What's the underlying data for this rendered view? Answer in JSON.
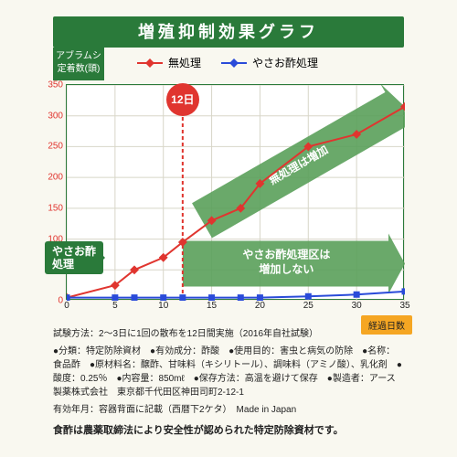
{
  "title": "増殖抑制効果グラフ",
  "ylabel": {
    "line1": "アブラムシ",
    "line2": "定着数(頭)"
  },
  "legend": {
    "untreated": "無処理",
    "treated": "やさお酢処理"
  },
  "legend_colors": {
    "untreated": "#e0352f",
    "treated": "#2a4bd9"
  },
  "chart": {
    "xlim": [
      0,
      35
    ],
    "ylim": [
      0,
      350
    ],
    "xticks": [
      0,
      5,
      10,
      15,
      20,
      25,
      30,
      35
    ],
    "yticks": [
      0,
      50,
      100,
      150,
      200,
      250,
      300,
      350
    ],
    "xlabel": "経過日数",
    "grid_color": "#d8d6c8",
    "divider_x": 12,
    "divider_label": "12日",
    "divider_color": "#e0352f",
    "series_untreated": {
      "color": "#e0352f",
      "points": [
        [
          0,
          5
        ],
        [
          5,
          25
        ],
        [
          7,
          50
        ],
        [
          10,
          70
        ],
        [
          12,
          95
        ],
        [
          15,
          130
        ],
        [
          18,
          150
        ],
        [
          20,
          190
        ],
        [
          25,
          250
        ],
        [
          30,
          270
        ],
        [
          35,
          315
        ]
      ]
    },
    "series_treated": {
      "color": "#2a4bd9",
      "points": [
        [
          0,
          5
        ],
        [
          5,
          5
        ],
        [
          7,
          5
        ],
        [
          10,
          5
        ],
        [
          12,
          5
        ],
        [
          15,
          5
        ],
        [
          18,
          5
        ],
        [
          20,
          5
        ],
        [
          25,
          7
        ],
        [
          30,
          10
        ],
        [
          35,
          15
        ]
      ]
    },
    "tag_yasao": "やさお酢\n処理",
    "overlay_untreated_text": "無処理は増加",
    "overlay_treated_text": "やさお酢処理区は\n増加しない",
    "arrow_color": "#5aa05a",
    "background_color": "#ffffff"
  },
  "footer": {
    "method": "試験方法：2〜3日に1回の散布を12日間実施（2016年自社試験）",
    "bullets": "●分類：特定防除資材　●有効成分：酢酸　●使用目的：害虫と病気の防除　●名称：食品酢　●原材料名：醸酢、甘味料（キシリトール）、調味料（アミノ酸）、乳化剤　●酸度：0.25％　●内容量：850mℓ　●保存方法：高温を避けて保存　●製造者：アース製薬株式会社　東京都千代田区神田司町2-12-1",
    "mij": "有効年月：容器背面に記載（西暦下2ケタ）　Made in Japan",
    "final": "食酢は農薬取締法により安全性が認められた特定防除資材です。"
  }
}
